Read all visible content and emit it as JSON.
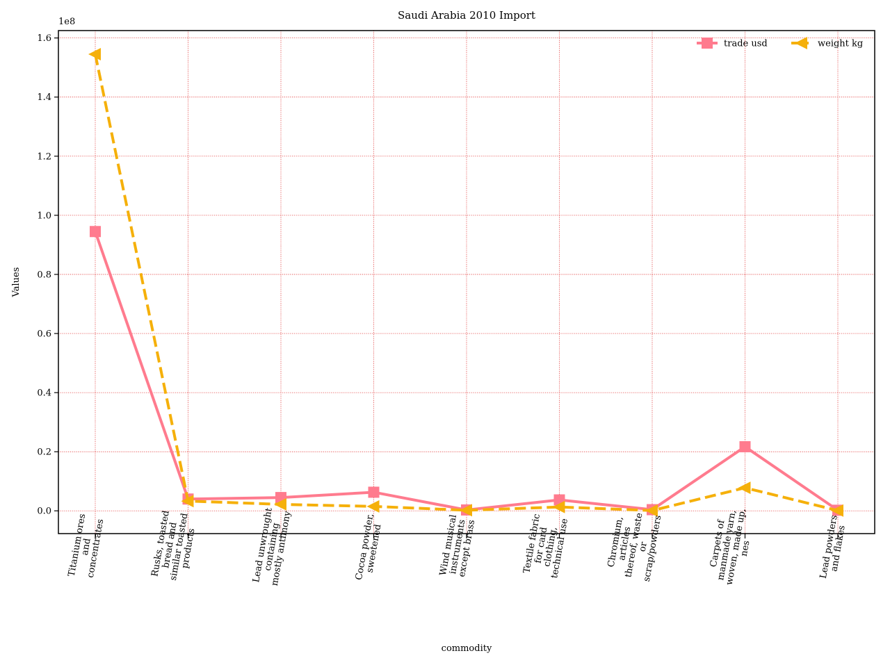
{
  "chart_data": {
    "type": "line",
    "title": "Saudi Arabia 2010 Import",
    "xlabel": "commodity",
    "ylabel": "Values",
    "y_multiplier_label": "1e8",
    "ylim": [
      -0.077,
      1.625
    ],
    "yticks": [
      0.0,
      0.2,
      0.4,
      0.6,
      0.8,
      1.0,
      1.2,
      1.4,
      1.6
    ],
    "ytick_labels": [
      "0.0",
      "0.2",
      "0.4",
      "0.6",
      "0.8",
      "1.0",
      "1.2",
      "1.4",
      "1.6"
    ],
    "grid": true,
    "legend_position": "top-right",
    "categories": [
      [
        "Titanium ores",
        "and",
        "concentrates"
      ],
      [
        "Rusks, toasted",
        "bread and",
        "similar toasted",
        "products"
      ],
      [
        "Lead unwrought",
        "containing",
        "mostly antimony"
      ],
      [
        "Cocoa powder,",
        "sweetened"
      ],
      [
        "Wind musical",
        "instruments",
        "except brass"
      ],
      [
        "Textile fabric",
        "for card",
        "clothing,",
        "technical use"
      ],
      [
        "Chromium,",
        "articles",
        "thereof, waste",
        "or",
        "scrap/powders"
      ],
      [
        "Carpets of",
        "manmade yarn,",
        "woven, made up,",
        "nes"
      ],
      [
        "Lead powders",
        "and flakes"
      ]
    ],
    "series": [
      {
        "name": "trade usd",
        "color": "#ff7b8e",
        "marker": "square",
        "linestyle": "solid",
        "values": [
          0.945,
          0.04,
          0.045,
          0.063,
          0.003,
          0.037,
          0.004,
          0.217,
          0.002
        ]
      },
      {
        "name": "weight kg",
        "color": "#f5b00a",
        "marker": "triangle-left",
        "linestyle": "dashed",
        "values": [
          1.545,
          0.033,
          0.022,
          0.015,
          0.002,
          0.013,
          0.001,
          0.078,
          0.001
        ]
      }
    ]
  }
}
